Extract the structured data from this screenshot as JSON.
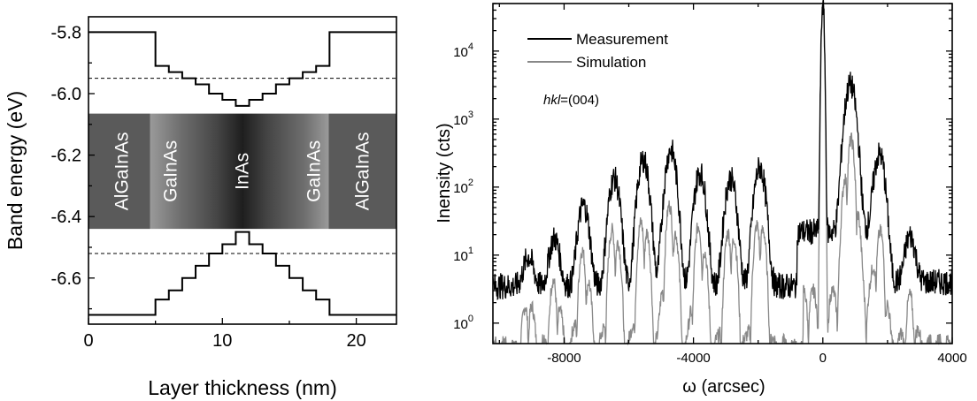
{
  "chart_data": [
    {
      "type": "line",
      "xlabel": "Layer thickness (nm)",
      "ylabel": "Band energy (eV)",
      "xlim": [
        0,
        23
      ],
      "ylim": [
        -6.75,
        -5.75
      ],
      "x_ticks": [
        "0",
        "10",
        "20"
      ],
      "y_ticks": [
        "-5.8",
        "-6.0",
        "-6.2",
        "-6.4",
        "-6.6"
      ],
      "layers": [
        "AlGaInAs",
        "GaInAs",
        "InAs",
        "GaInAs",
        "AlGaInAs"
      ],
      "series": [
        {
          "role": "conduction-band",
          "x": [
            0,
            5,
            5,
            6,
            6,
            7,
            7,
            8,
            8,
            9,
            9,
            10,
            10,
            11,
            11,
            12,
            12,
            13,
            13,
            14,
            14,
            15,
            15,
            16,
            16,
            17,
            17,
            18,
            18,
            23
          ],
          "y": [
            -5.8,
            -5.8,
            -5.91,
            -5.91,
            -5.93,
            -5.93,
            -5.95,
            -5.95,
            -5.97,
            -5.97,
            -6.0,
            -6.0,
            -6.02,
            -6.02,
            -6.04,
            -6.04,
            -6.02,
            -6.02,
            -6.0,
            -6.0,
            -5.97,
            -5.97,
            -5.95,
            -5.95,
            -5.93,
            -5.93,
            -5.91,
            -5.91,
            -5.8,
            -5.8
          ]
        },
        {
          "role": "valence-band",
          "x": [
            0,
            5,
            5,
            6,
            6,
            7,
            7,
            8,
            8,
            9,
            9,
            10,
            10,
            11,
            11,
            12,
            12,
            13,
            13,
            14,
            14,
            15,
            15,
            16,
            16,
            17,
            17,
            18,
            18,
            23
          ],
          "y": [
            -6.72,
            -6.72,
            -6.67,
            -6.67,
            -6.64,
            -6.64,
            -6.6,
            -6.6,
            -6.56,
            -6.56,
            -6.52,
            -6.52,
            -6.49,
            -6.49,
            -6.45,
            -6.45,
            -6.49,
            -6.49,
            -6.52,
            -6.52,
            -6.56,
            -6.56,
            -6.6,
            -6.6,
            -6.64,
            -6.64,
            -6.67,
            -6.67,
            -6.72,
            -6.72
          ]
        }
      ],
      "dashed_levels": [
        -5.95,
        -6.52
      ]
    },
    {
      "type": "line",
      "xlabel": "ω (arcsec)",
      "ylabel": "Inensity (cts)",
      "xlim": [
        -10200,
        4000
      ],
      "ylim": [
        0.5,
        50000
      ],
      "yscale": "log",
      "x_ticks": [
        "-8000",
        "-4000",
        "0",
        "4000"
      ],
      "y_ticks": [
        "10^0",
        "10^1",
        "10^2",
        "10^3",
        "10^4"
      ],
      "annotation_italic": "hkl",
      "annotation_rest": "=(004)",
      "legend_position": "top-left",
      "series": [
        {
          "name": "Measurement",
          "color": "#000000",
          "peaks_x": [
            -9100,
            -8300,
            -7400,
            -6450,
            -5550,
            -4700,
            -3800,
            -2850,
            -1950,
            0,
            850,
            1750,
            2700
          ],
          "peaks_y": [
            6,
            14,
            50,
            130,
            250,
            350,
            160,
            130,
            190,
            50000,
            3200,
            280,
            15
          ]
        },
        {
          "name": "Simulation",
          "color": "#888888",
          "peaks_x": [
            -9100,
            -8300,
            -7400,
            -6450,
            -5550,
            -4700,
            -3800,
            -2850,
            -1950,
            0,
            850,
            1750,
            2700
          ],
          "peaks_y": [
            2,
            4,
            12,
            30,
            40,
            60,
            30,
            30,
            40,
            50000,
            520,
            20,
            2
          ]
        }
      ]
    }
  ]
}
